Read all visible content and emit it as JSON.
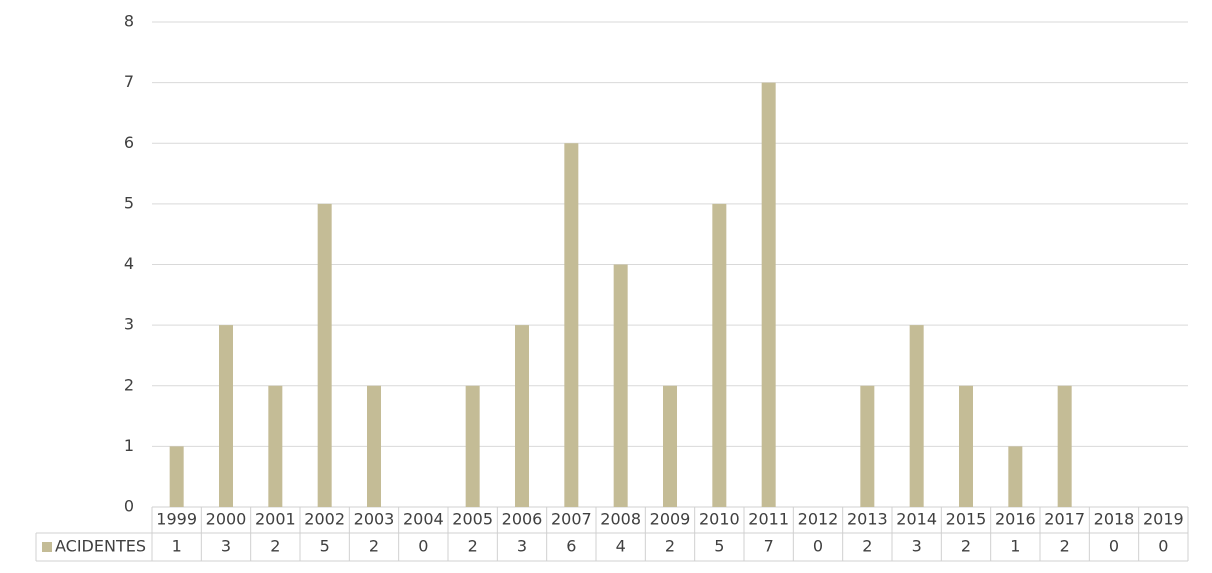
{
  "chart_data": {
    "type": "bar",
    "categories": [
      "1999",
      "2000",
      "2001",
      "2002",
      "2003",
      "2004",
      "2005",
      "2006",
      "2007",
      "2008",
      "2009",
      "2010",
      "2011",
      "2012",
      "2013",
      "2014",
      "2015",
      "2016",
      "2017",
      "2018",
      "2019"
    ],
    "series": [
      {
        "name": "ACIDENTES",
        "color": "#c4bc96",
        "values": [
          1,
          3,
          2,
          5,
          2,
          0,
          2,
          3,
          6,
          4,
          2,
          5,
          7,
          0,
          2,
          3,
          2,
          1,
          2,
          0,
          0
        ]
      }
    ],
    "ylim": [
      0,
      8
    ],
    "yticks": [
      0,
      1,
      2,
      3,
      4,
      5,
      6,
      7,
      8
    ],
    "grid": true
  }
}
